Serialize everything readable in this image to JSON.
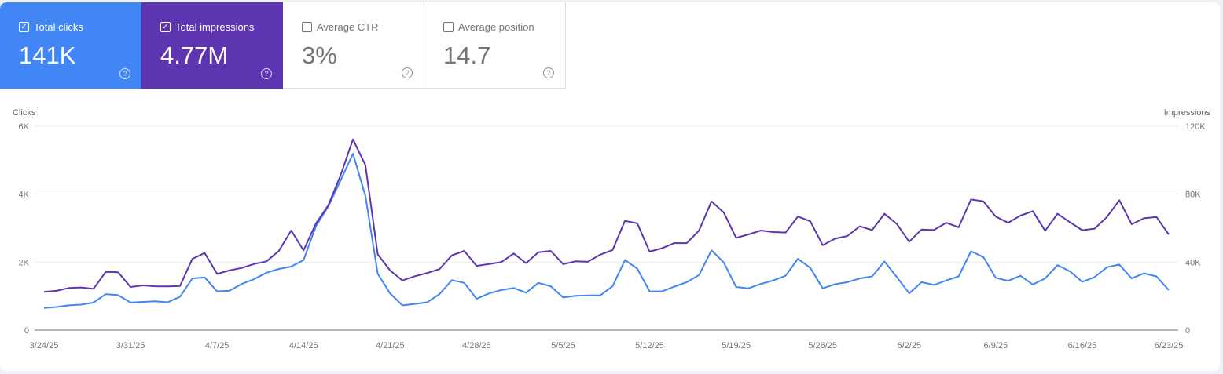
{
  "metrics": [
    {
      "label": "Total clicks",
      "value": "141K",
      "checked": true,
      "color": "#4285f4"
    },
    {
      "label": "Total impressions",
      "value": "4.77M",
      "checked": true,
      "color": "#5e35b1"
    },
    {
      "label": "Average CTR",
      "value": "3%",
      "checked": false
    },
    {
      "label": "Average position",
      "value": "14.7",
      "checked": false
    }
  ],
  "icons": {
    "checkbox_checked": "✓",
    "help": "?"
  },
  "chart_data": {
    "type": "line",
    "ylabel": "Clicks",
    "y2label": "Impressions",
    "ylim": [
      0,
      6000
    ],
    "y2lim": [
      0,
      120000
    ],
    "yticks": [
      "0",
      "2K",
      "4K",
      "6K"
    ],
    "y2ticks": [
      "0",
      "40K",
      "80K",
      "120K"
    ],
    "xticks": [
      "3/24/25",
      "3/31/25",
      "4/7/25",
      "4/14/25",
      "4/21/25",
      "4/28/25",
      "5/5/25",
      "5/12/25",
      "5/19/25",
      "5/26/25",
      "6/2/25",
      "6/9/25",
      "6/16/25",
      "6/23/25"
    ],
    "grid": true,
    "x": [
      "3/24",
      "3/25",
      "3/26",
      "3/27",
      "3/28",
      "3/29",
      "3/30",
      "3/31",
      "4/1",
      "4/2",
      "4/3",
      "4/4",
      "4/5",
      "4/6",
      "4/7",
      "4/8",
      "4/9",
      "4/10",
      "4/11",
      "4/12",
      "4/13",
      "4/14",
      "4/15",
      "4/16",
      "4/17",
      "4/18",
      "4/19",
      "4/20",
      "4/21",
      "4/22",
      "4/23",
      "4/24",
      "4/25",
      "4/26",
      "4/27",
      "4/28",
      "4/29",
      "4/30",
      "5/1",
      "5/2",
      "5/3",
      "5/4",
      "5/5",
      "5/6",
      "5/7",
      "5/8",
      "5/9",
      "5/10",
      "5/11",
      "5/12",
      "5/13",
      "5/14",
      "5/15",
      "5/16",
      "5/17",
      "5/18",
      "5/19",
      "5/20",
      "5/21",
      "5/22",
      "5/23",
      "5/24",
      "5/25",
      "5/26",
      "5/27",
      "5/28",
      "5/29",
      "5/30",
      "5/31",
      "6/1",
      "6/2",
      "6/3",
      "6/4",
      "6/5",
      "6/6",
      "6/7",
      "6/8",
      "6/9",
      "6/10",
      "6/11",
      "6/12",
      "6/13",
      "6/14",
      "6/15",
      "6/16",
      "6/17",
      "6/18",
      "6/19",
      "6/20",
      "6/21",
      "6/22",
      "6/23"
    ],
    "series": [
      {
        "name": "Clicks",
        "axis": "left",
        "color": "#4285f4",
        "values": [
          650,
          680,
          730,
          750,
          810,
          1060,
          1030,
          810,
          830,
          850,
          820,
          980,
          1520,
          1550,
          1140,
          1160,
          1360,
          1500,
          1690,
          1800,
          1870,
          2060,
          3060,
          3640,
          4410,
          5190,
          3950,
          1660,
          1080,
          730,
          770,
          820,
          1060,
          1470,
          1390,
          920,
          1080,
          1180,
          1240,
          1100,
          1390,
          1290,
          960,
          1010,
          1020,
          1020,
          1290,
          2060,
          1810,
          1140,
          1140,
          1280,
          1410,
          1620,
          2350,
          1990,
          1270,
          1230,
          1360,
          1460,
          1600,
          2100,
          1830,
          1230,
          1350,
          1410,
          1520,
          1580,
          2020,
          1560,
          1080,
          1410,
          1330,
          1460,
          1580,
          2320,
          2150,
          1540,
          1450,
          1600,
          1340,
          1520,
          1910,
          1730,
          1420,
          1560,
          1850,
          1930,
          1520,
          1670,
          1580,
          1180
        ]
      },
      {
        "name": "Impressions",
        "axis": "right",
        "color": "#5e35b1",
        "values": [
          22500,
          23100,
          24800,
          25100,
          24300,
          34300,
          34000,
          25400,
          26300,
          25800,
          25700,
          26000,
          41900,
          45400,
          33100,
          35100,
          36600,
          38900,
          40500,
          46600,
          58600,
          46900,
          62800,
          73500,
          91200,
          112300,
          97100,
          44600,
          35100,
          29200,
          31700,
          33600,
          35900,
          44000,
          46600,
          37800,
          38900,
          40000,
          45100,
          39400,
          45800,
          46600,
          38800,
          40500,
          40200,
          44400,
          47100,
          64300,
          62800,
          46200,
          48200,
          51200,
          51200,
          58600,
          75800,
          69200,
          54300,
          56300,
          58600,
          57700,
          57400,
          66900,
          64000,
          50000,
          53800,
          55400,
          61100,
          58900,
          68500,
          62500,
          52000,
          59200,
          58900,
          63200,
          60500,
          76900,
          75800,
          66900,
          63200,
          67400,
          70000,
          58500,
          68500,
          63500,
          58800,
          59700,
          66600,
          76500,
          62300,
          65800,
          66600,
          56300
        ]
      }
    ]
  }
}
